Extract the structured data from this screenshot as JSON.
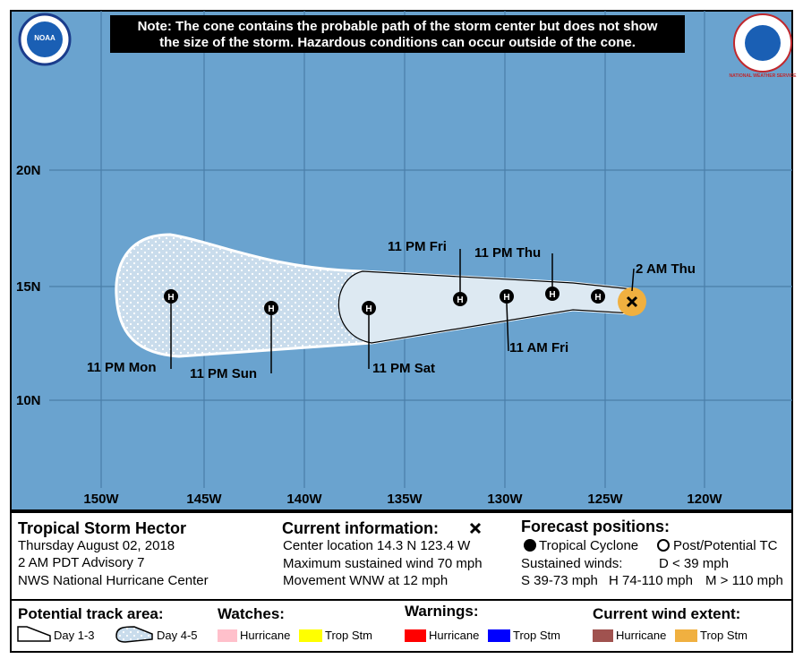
{
  "noaa_logo_text": "NOAA",
  "nws_logo_text": "NATIONAL WEATHER SERVICE",
  "note": [
    "Note: The cone contains the probable path of the storm center but does not show",
    "the size of the storm. Hazardous conditions can occur outside of the cone."
  ],
  "latitude_labels": [
    "20N",
    "15N",
    "10N"
  ],
  "longitude_labels": [
    "150W",
    "145W",
    "140W",
    "135W",
    "130W",
    "125W",
    "120W"
  ],
  "current_position_label": "2 AM Thu",
  "marker_letter": "H",
  "forecast_labels": [
    "11 PM Thu",
    "11 AM Fri",
    "11 PM Fri",
    "11 PM Sat",
    "11 PM Sun",
    "11 PM Mon"
  ],
  "storm": {
    "name": "Tropical Storm Hector",
    "date": "Thursday August 02, 2018",
    "advisory": "2 AM PDT Advisory 7",
    "office": "NWS National Hurricane Center"
  },
  "current_information": {
    "title": "Current information:",
    "lines": [
      "Center location 14.3 N 123.4 W",
      "Maximum sustained wind 70 mph",
      "Movement WNW at 12 mph"
    ]
  },
  "forecast_positions": {
    "title": "Forecast positions:",
    "tropical_cyclone": "Tropical Cyclone",
    "post_potential": "Post/Potential TC",
    "sustained_winds": "Sustained winds:",
    "d": "D < 39 mph",
    "s": "S 39-73 mph",
    "h": "H 74-110 mph",
    "m": "M > 110 mph"
  },
  "legend": {
    "track_title": "Potential track area:",
    "day13": "Day 1-3",
    "day45": "Day 4-5",
    "watches_title": "Watches:",
    "watch_hurricane": "Hurricane",
    "watch_trop": "Trop Stm",
    "warnings_title": "Warnings:",
    "warning_hurricane": "Hurricane",
    "warning_trop": "Trop Stm",
    "wind_title": "Current wind extent:",
    "wind_hurricane": "Hurricane",
    "wind_trop": "Trop Stm"
  }
}
